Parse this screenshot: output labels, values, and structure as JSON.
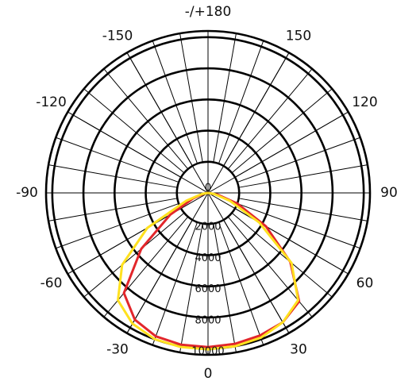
{
  "chart_data": {
    "type": "polar-line",
    "x": [
      -90,
      -80,
      -70,
      -60,
      -50,
      -40,
      -30,
      -20,
      -10,
      0,
      10,
      20,
      30,
      40,
      50,
      60,
      70,
      80,
      90
    ],
    "series": [
      {
        "color": "#e2262b",
        "values": [
          0,
          250,
          1000,
          2800,
          5600,
          8400,
          9400,
          9800,
          9900,
          9900,
          9850,
          9750,
          9600,
          9100,
          6900,
          4300,
          2000,
          600,
          0
        ]
      },
      {
        "color": "#ffe11f",
        "values": [
          0,
          400,
          1500,
          4500,
          7200,
          9000,
          9700,
          10000,
          10050,
          10050,
          10000,
          9900,
          9600,
          9000,
          7000,
          3800,
          1500,
          400,
          0
        ]
      }
    ],
    "ylim": [
      0,
      10400
    ],
    "yticks": [
      0,
      2000,
      4000,
      6000,
      8000,
      10000
    ],
    "xticks": [
      0,
      30,
      60,
      90,
      120,
      150,
      {
        "value": 180,
        "label": "-/+180"
      },
      -150,
      -120,
      -90,
      -60,
      -30
    ],
    "grid": true
  }
}
